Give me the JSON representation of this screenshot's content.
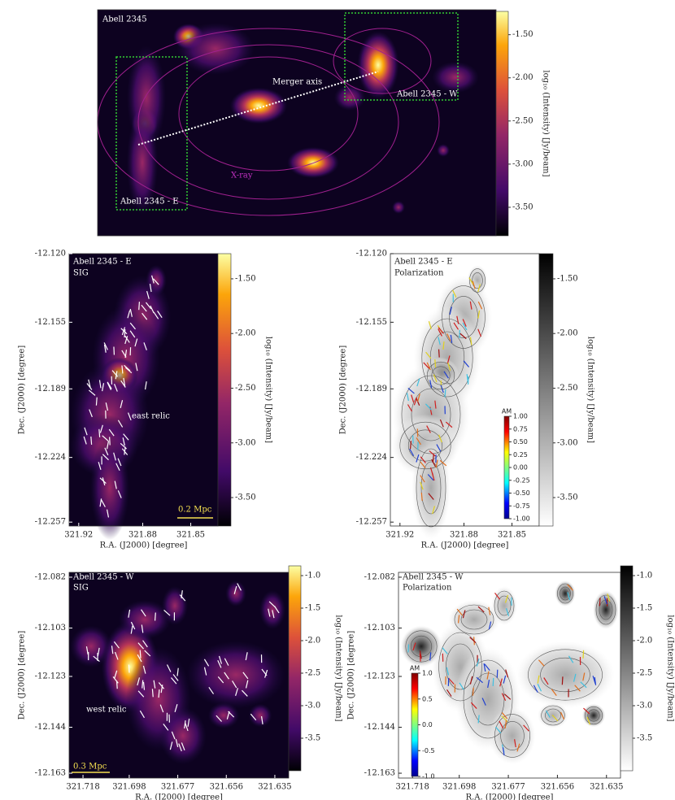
{
  "chart_data": [
    {
      "type": "image",
      "title": "Abell 2345",
      "colormap": "inferno",
      "annotations": [
        "Merger axis",
        "Abell 2345 - W",
        "Abell 2345 - E",
        "X-ray"
      ],
      "colorbar": {
        "label": "log₁₀ (Intensity) [Jy/beam]",
        "lim": [
          -3.83,
          -1.23
        ],
        "ticks": [
          {
            "value": -1.5,
            "label": "-1.50"
          },
          {
            "value": -2.0,
            "label": "-2.00"
          },
          {
            "value": -2.5,
            "label": "-2.50"
          },
          {
            "value": -3.0,
            "label": "-3.00"
          },
          {
            "value": -3.5,
            "label": "-3.50"
          }
        ]
      }
    },
    {
      "type": "image",
      "title": "Abell 2345 - E",
      "subtitle": "SIG",
      "colormap": "inferno",
      "annotations": [
        "east relic",
        "0.2 Mpc"
      ],
      "xlabel": "R.A. (J2000) [degree]",
      "ylabel": "Dec. (J2000) [degree]",
      "xlim": [
        321.926,
        321.833
      ],
      "ylim": [
        -12.259,
        -12.12
      ],
      "xticks": [
        321.92,
        321.88,
        321.85
      ],
      "yticks": [
        {
          "value": -12.12,
          "label": "-12.120"
        },
        -12.155,
        -12.189,
        -12.224,
        -12.257
      ],
      "colorbar": {
        "label": "log₁₀ (Intensity) [Jy/beam]",
        "lim": [
          -3.76,
          -1.27
        ],
        "ticks": [
          {
            "value": -1.5,
            "label": "-1.50"
          },
          {
            "value": -2.0,
            "label": "-2.00"
          },
          {
            "value": -2.5,
            "label": "-2.50"
          },
          {
            "value": -3.0,
            "label": "-3.00"
          },
          {
            "value": -3.5,
            "label": "-3.50"
          }
        ]
      }
    },
    {
      "type": "image",
      "title": "Abell 2345 - E",
      "subtitle": "Polarization",
      "colormap": "gray",
      "xlabel": "R.A. (J2000) [degree]",
      "ylabel": "Dec. (J2000) [degree]",
      "xlim": [
        321.926,
        321.833
      ],
      "ylim": [
        -12.259,
        -12.12
      ],
      "xticks": [
        321.92,
        321.88,
        321.85
      ],
      "yticks": [
        {
          "value": -12.12,
          "label": "-12.120"
        },
        -12.155,
        -12.189,
        -12.224,
        -12.257
      ],
      "colorbar": {
        "label": "log₁₀ (Intensity) [Jy/beam]",
        "lim": [
          -3.76,
          -1.27
        ],
        "ticks": [
          {
            "value": -1.5,
            "label": "-1.50"
          },
          {
            "value": -2.0,
            "label": "-2.00"
          },
          {
            "value": -2.5,
            "label": "-2.50"
          },
          {
            "value": -3.0,
            "label": "-3.00"
          },
          {
            "value": -3.5,
            "label": "-3.50"
          }
        ]
      },
      "am_colorbar": {
        "label": "AM",
        "lim": [
          -1,
          1
        ],
        "ticks": [
          {
            "value": 1,
            "label": "1.00"
          },
          0.75,
          {
            "value": 0.5,
            "label": "0.50"
          },
          0.25,
          {
            "value": 0,
            "label": "0.00"
          },
          -0.25,
          {
            "value": -0.5,
            "label": "-0.50"
          },
          -0.75,
          {
            "value": -1,
            "label": "-1.00"
          }
        ]
      }
    },
    {
      "type": "image",
      "title": "Abell 2345 - W",
      "subtitle": "SIG",
      "colormap": "inferno",
      "annotations": [
        "west relic",
        "0.3 Mpc"
      ],
      "xlabel": "R.A. (J2000) [degree]",
      "ylabel": "Dec. (J2000) [degree]",
      "xlim": [
        321.724,
        321.629
      ],
      "ylim": [
        -12.165,
        -12.08
      ],
      "xticks": [
        321.718,
        321.698,
        321.677,
        321.656,
        321.635
      ],
      "yticks": [
        -12.082,
        -12.103,
        -12.123,
        -12.144,
        -12.163
      ],
      "colorbar": {
        "label": "log₁₀ (Intensity) [Jy/beam]",
        "lim": [
          -4.0,
          -0.85
        ],
        "ticks": [
          {
            "value": -1.0,
            "label": "-1.0"
          },
          -1.5,
          {
            "value": -2.0,
            "label": "-2.0"
          },
          -2.5,
          {
            "value": -3.0,
            "label": "-3.0"
          },
          -3.5
        ]
      }
    },
    {
      "type": "image",
      "title": "Abell 2345 - W",
      "subtitle": "Polarization",
      "colormap": "gray",
      "xlabel": "R.A. (J2000) [degree]",
      "ylabel": "Dec. (J2000) [degree]",
      "xlim": [
        321.724,
        321.629
      ],
      "ylim": [
        -12.165,
        -12.08
      ],
      "xticks": [
        321.718,
        321.698,
        321.677,
        321.656,
        321.635
      ],
      "yticks": [
        -12.082,
        -12.103,
        -12.123,
        -12.144,
        -12.163
      ],
      "colorbar": {
        "label": "log₁₀ (Intensity) [Jy/beam]",
        "lim": [
          -4.0,
          -0.85
        ],
        "ticks": [
          {
            "value": -1.0,
            "label": "-1.0"
          },
          -1.5,
          {
            "value": -2.0,
            "label": "-2.0"
          },
          -2.5,
          {
            "value": -3.0,
            "label": "-3.0"
          },
          -3.5
        ]
      },
      "am_colorbar": {
        "label": "AM",
        "lim": [
          -1,
          1
        ],
        "ticks": [
          {
            "value": 1,
            "label": "1.0"
          },
          0.5,
          {
            "value": 0,
            "label": "0.0"
          },
          -0.5,
          {
            "value": -1,
            "label": "-1.0"
          }
        ]
      }
    }
  ]
}
